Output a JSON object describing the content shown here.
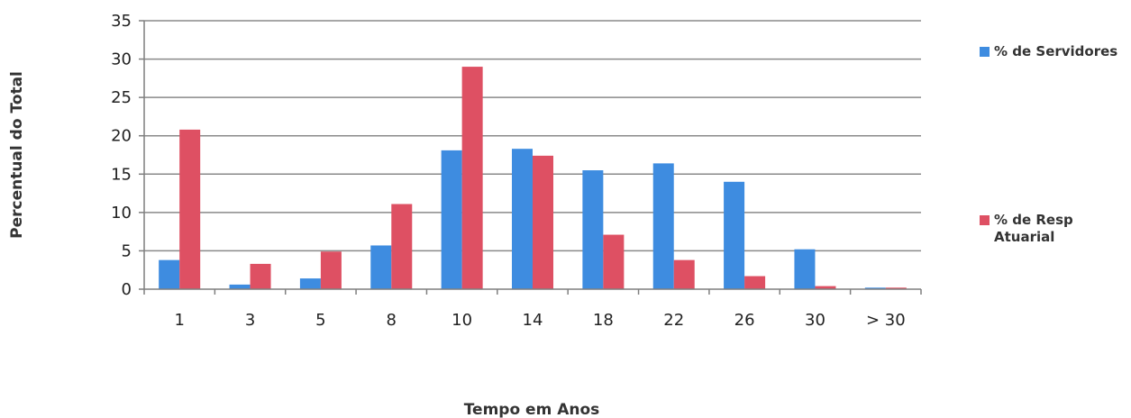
{
  "chart_data": {
    "type": "bar",
    "categories": [
      "1",
      "3",
      "5",
      "8",
      "10",
      "14",
      "18",
      "22",
      "26",
      "30",
      "> 30"
    ],
    "series": [
      {
        "name": "% de Servidores",
        "color": "#3E8CE0",
        "values": [
          3.8,
          0.6,
          1.4,
          5.7,
          18.1,
          18.3,
          15.5,
          16.4,
          14.0,
          5.2,
          0.2
        ]
      },
      {
        "name": "% de Resp Atuarial",
        "color": "#DE5063",
        "values": [
          20.8,
          3.3,
          4.9,
          11.1,
          29.0,
          17.4,
          7.1,
          3.8,
          1.7,
          0.4,
          0.2
        ]
      }
    ],
    "xlabel": "Tempo em Anos",
    "ylabel": "Percentual do Total",
    "ylim": [
      0,
      35
    ],
    "yticks": [
      0,
      5,
      10,
      15,
      20,
      25,
      30,
      35
    ],
    "grid": true,
    "legend_position": "right"
  }
}
